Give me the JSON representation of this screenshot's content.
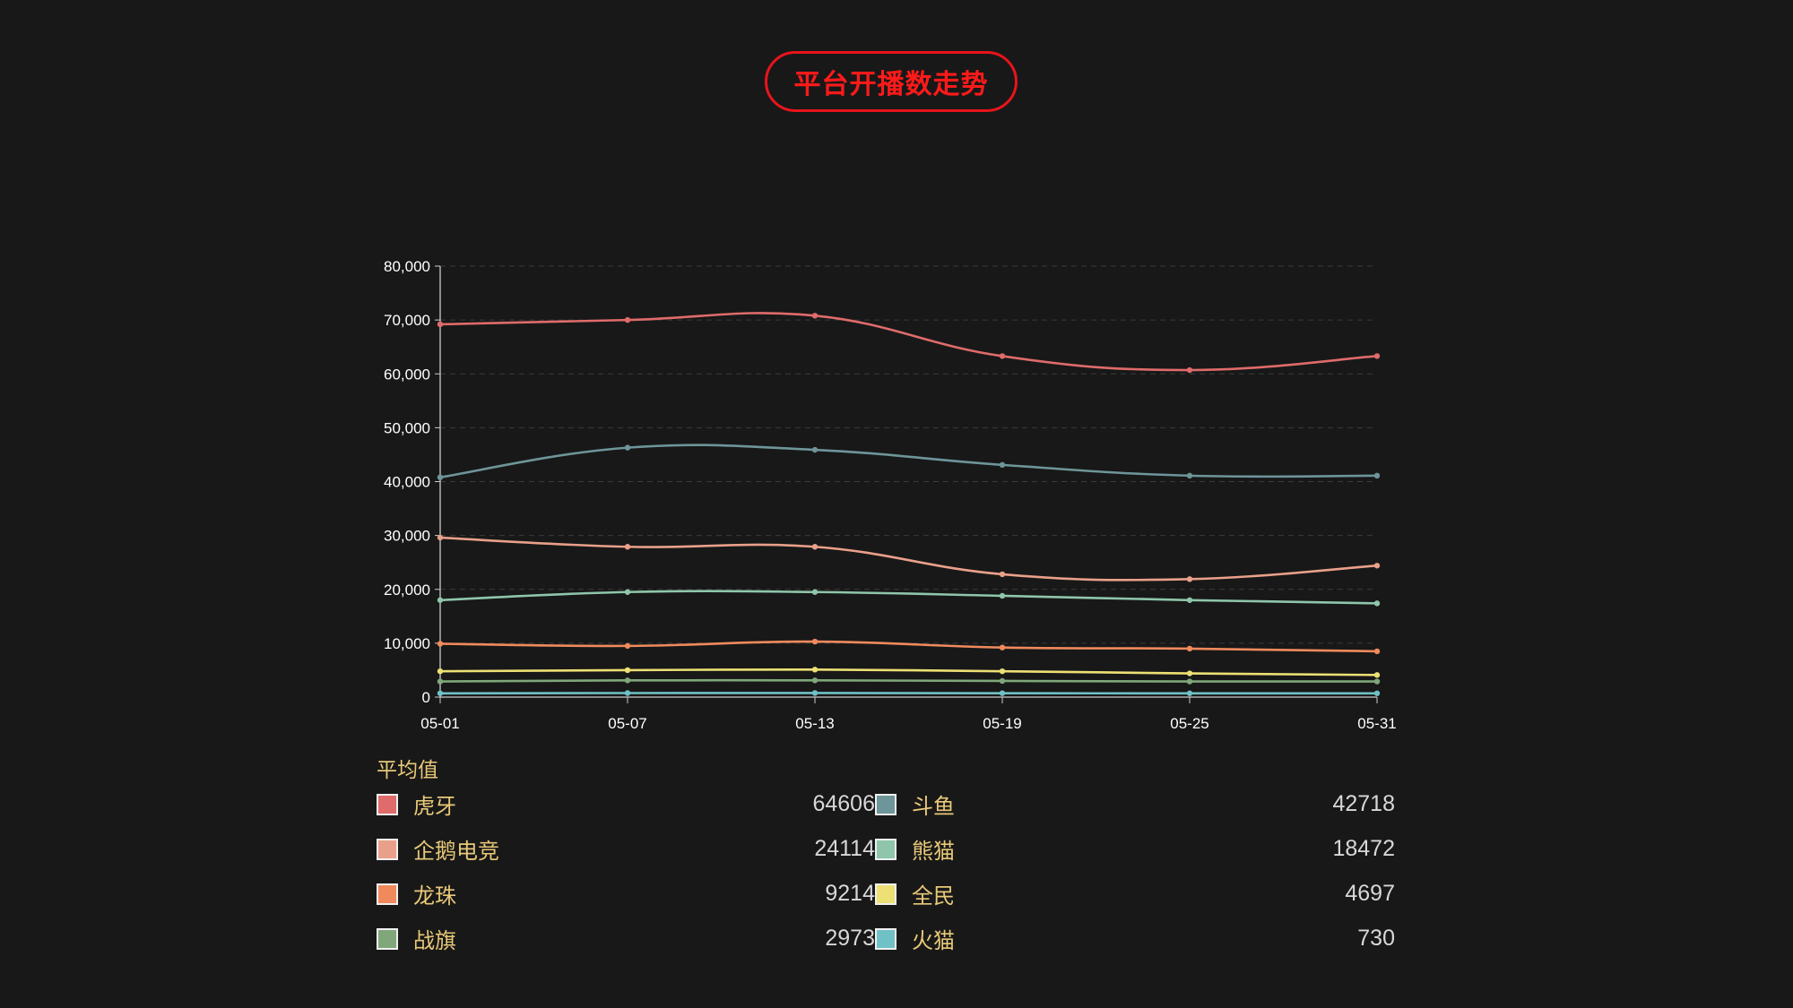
{
  "title": "平台开播数走势",
  "chart_data": {
    "type": "line",
    "x": [
      "05-01",
      "05-07",
      "05-13",
      "05-19",
      "05-25",
      "05-31"
    ],
    "ylim": [
      0,
      80000
    ],
    "yticks": [
      0,
      10000,
      20000,
      30000,
      40000,
      50000,
      60000,
      70000,
      80000
    ],
    "ytick_labels": [
      "0",
      "10,000",
      "20,000",
      "30,000",
      "40,000",
      "50,000",
      "60,000",
      "70,000",
      "80,000"
    ],
    "grid": true,
    "series": [
      {
        "name": "虎牙",
        "color": "#e06b6b",
        "values": [
          69200,
          70000,
          70800,
          63300,
          60700,
          63300
        ]
      },
      {
        "name": "斗鱼",
        "color": "#6e9599",
        "values": [
          40800,
          46300,
          45900,
          43100,
          41100,
          41100
        ]
      },
      {
        "name": "企鹅电竞",
        "color": "#e9a08a",
        "values": [
          29600,
          27900,
          27900,
          22800,
          21900,
          24400
        ]
      },
      {
        "name": "熊猫",
        "color": "#8fc6ab",
        "values": [
          18000,
          19500,
          19500,
          18800,
          18000,
          17400
        ]
      },
      {
        "name": "龙珠",
        "color": "#f08a5d",
        "values": [
          9900,
          9500,
          10300,
          9200,
          9000,
          8500
        ]
      },
      {
        "name": "全民",
        "color": "#ede074",
        "values": [
          4800,
          5000,
          5100,
          4800,
          4400,
          4100
        ]
      },
      {
        "name": "战旗",
        "color": "#7fa77a",
        "values": [
          2900,
          3100,
          3100,
          3000,
          2900,
          2900
        ]
      },
      {
        "name": "火猫",
        "color": "#70c1c6",
        "values": [
          700,
          750,
          760,
          720,
          700,
          700
        ]
      }
    ]
  },
  "average": {
    "heading": "平均值",
    "items": [
      {
        "name": "虎牙",
        "value": "64606",
        "color": "#e06b6b"
      },
      {
        "name": "斗鱼",
        "value": "42718",
        "color": "#6e9599"
      },
      {
        "name": "企鹅电竞",
        "value": "24114",
        "color": "#e9a08a"
      },
      {
        "name": "熊猫",
        "value": "18472",
        "color": "#8fc6ab"
      },
      {
        "name": "龙珠",
        "value": "9214",
        "color": "#f08a5d"
      },
      {
        "name": "全民",
        "value": "4697",
        "color": "#ede074"
      },
      {
        "name": "战旗",
        "value": "2973",
        "color": "#7fa77a"
      },
      {
        "name": "火猫",
        "value": "730",
        "color": "#70c1c6"
      }
    ]
  }
}
